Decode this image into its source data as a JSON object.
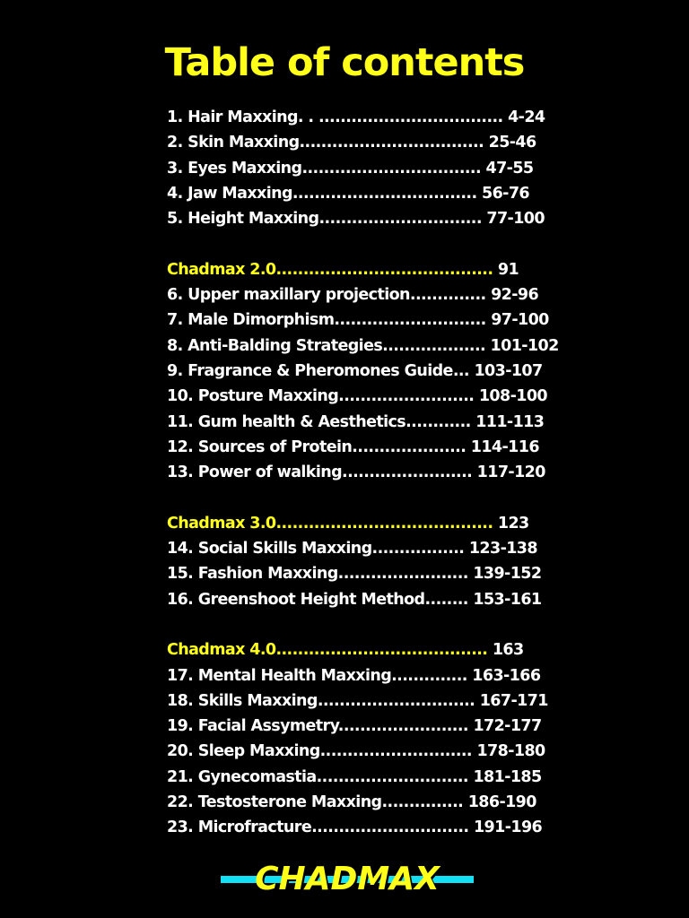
{
  "colors": {
    "background": "#000000",
    "accent_yellow": "#ffff1a",
    "accent_cyan": "#12e0f5",
    "text": "#ffffff"
  },
  "title": "Table of contents",
  "entries": [
    {
      "label": "1. Hair Maxxing. . ..................................",
      "pages": " 4-24"
    },
    {
      "label": "2. Skin Maxxing..................................",
      "pages": " 25-46"
    },
    {
      "label": "3. Eyes Maxxing.................................",
      "pages": " 47-55"
    },
    {
      "label": "4. Jaw Maxxing..................................",
      "pages": " 56-76"
    },
    {
      "label": "5. Height Maxxing..............................",
      "pages": " 77-100"
    },
    {
      "label": "Chadmax 2.0........................................",
      "pages": " 91"
    },
    {
      "label": "6. Upper maxillary projection..............",
      "pages": " 92-96"
    },
    {
      "label": "7. Male Dimorphism............................",
      "pages": " 97-100"
    },
    {
      "label": "8. Anti-Balding Strategies...................",
      "pages": " 101-102"
    },
    {
      "label": "9. Fragrance & Pheromones Guide...",
      "pages": " 103-107"
    },
    {
      "label": "10. Posture Maxxing.........................",
      "pages": " 108-100"
    },
    {
      "label": "11. Gum health & Aesthetics............",
      "pages": " 111-113"
    },
    {
      "label": "12. Sources of Protein.....................",
      "pages": " 114-116"
    },
    {
      "label": "13. Power of walking........................",
      "pages": " 117-120"
    },
    {
      "label": "Chadmax 3.0........................................",
      "pages": " 123"
    },
    {
      "label": "14. Social Skills Maxxing.................",
      "pages": " 123-138"
    },
    {
      "label": "15. Fashion Maxxing........................",
      "pages": " 139-152"
    },
    {
      "label": "16. Greenshoot Height Method........",
      "pages": " 153-161"
    },
    {
      "label": "Chadmax 4.0.......................................",
      "pages": " 163"
    },
    {
      "label": "17. Mental Health Maxxing..............",
      "pages": " 163-166"
    },
    {
      "label": "18. Skills Maxxing.............................",
      "pages": " 167-171"
    },
    {
      "label": "19. Facial Assymetry........................",
      "pages": " 172-177"
    },
    {
      "label": "20. Sleep Maxxing............................",
      "pages": " 178-180"
    },
    {
      "label": "21. Gynecomastia............................",
      "pages": " 181-185"
    },
    {
      "label": "22. Testosterone Maxxing...............",
      "pages": " 186-190"
    },
    {
      "label": "23. Microfracture.............................",
      "pages": " 191-196"
    }
  ],
  "brand": "CHADMAX"
}
